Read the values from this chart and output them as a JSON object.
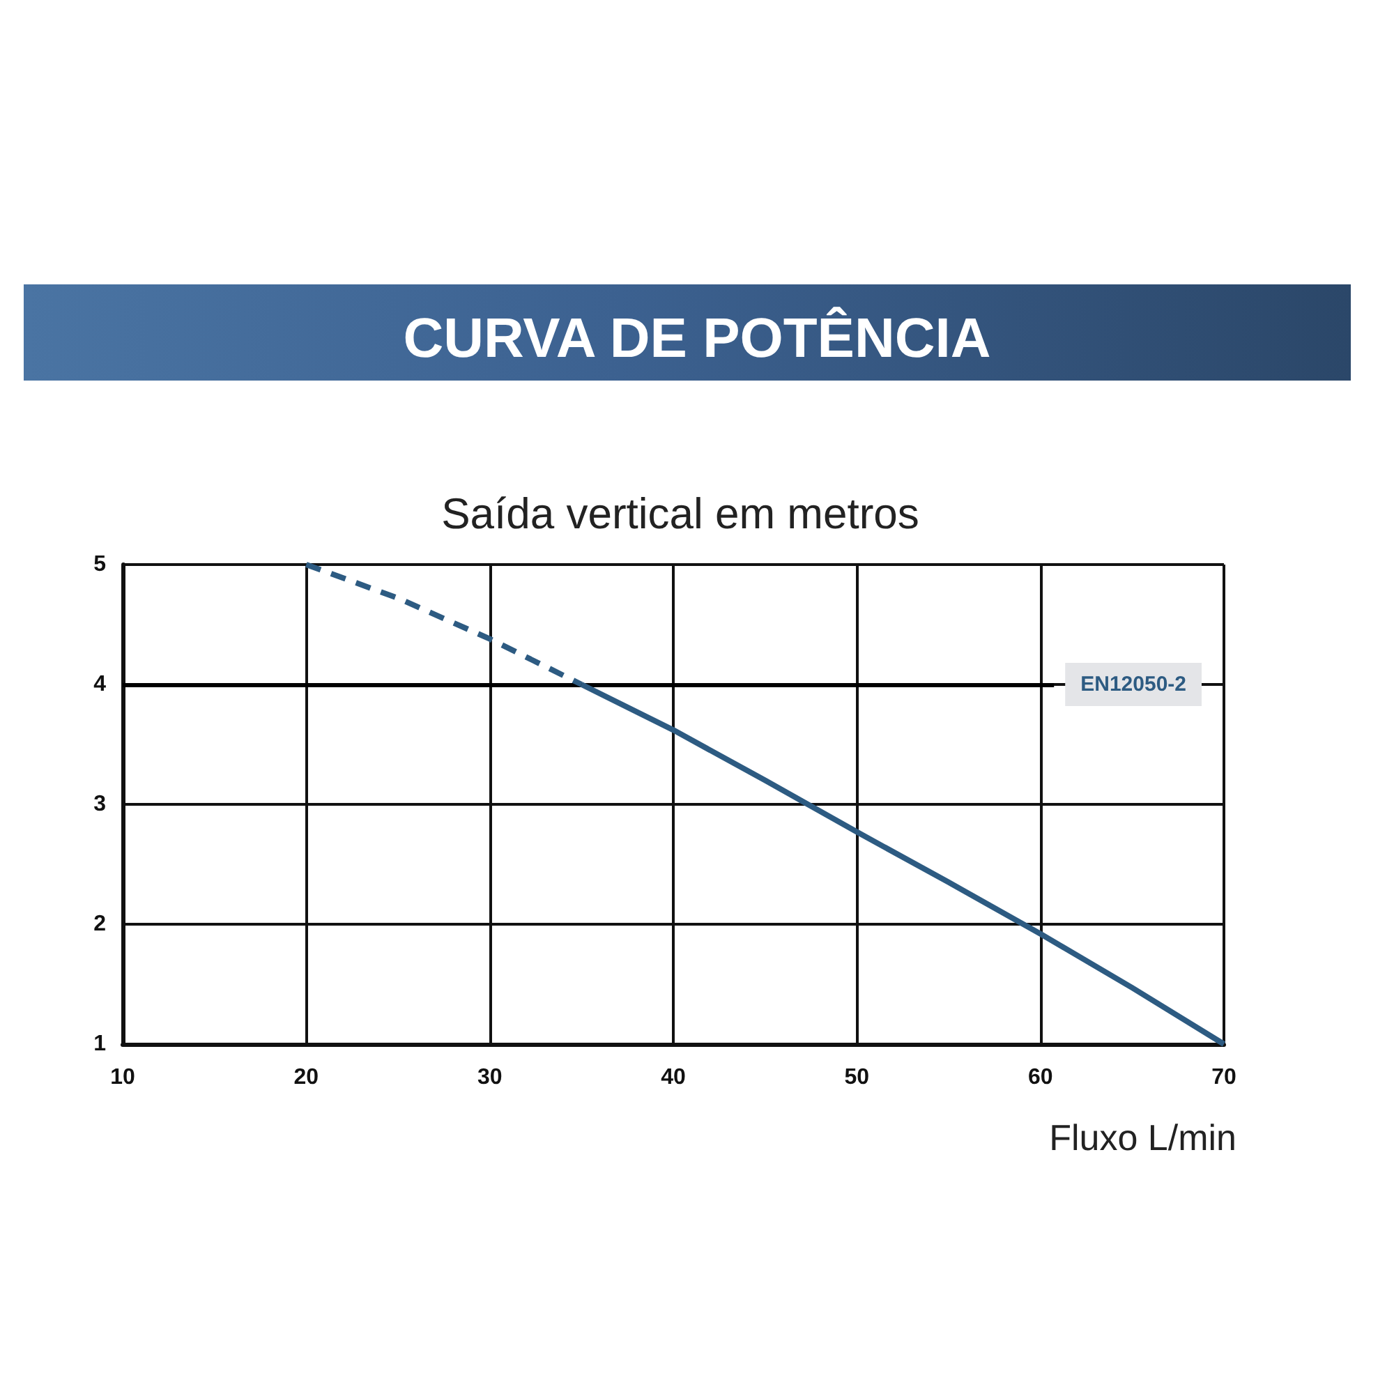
{
  "chart_data": {
    "type": "line",
    "title": "CURVA DE POTÊNCIA",
    "ylabel": "Saída vertical em metros",
    "xlabel": "Fluxo L/min",
    "series": [
      {
        "color": "#2d5b82",
        "line_style": "dashed",
        "x": [
          20,
          25,
          30,
          35
        ],
        "values": [
          5,
          4.72,
          4.38,
          4
        ]
      },
      {
        "color": "#2d5b82",
        "line_style": "solid",
        "x": [
          35,
          40,
          45,
          50,
          55,
          60,
          65,
          70
        ],
        "values": [
          4,
          3.62,
          3.2,
          2.77,
          2.35,
          1.92,
          1.47,
          1
        ]
      }
    ],
    "xlim": [
      10,
      70
    ],
    "xticks": [
      10,
      20,
      30,
      40,
      50,
      60,
      70
    ],
    "ylim": [
      1,
      5
    ],
    "yticks": [
      1,
      2,
      3,
      4,
      5
    ],
    "grid": true,
    "marker": "none",
    "ref_lines": [
      {
        "axis": "y",
        "value": 4,
        "label": "EN12050-2",
        "color": "#000000"
      }
    ]
  }
}
